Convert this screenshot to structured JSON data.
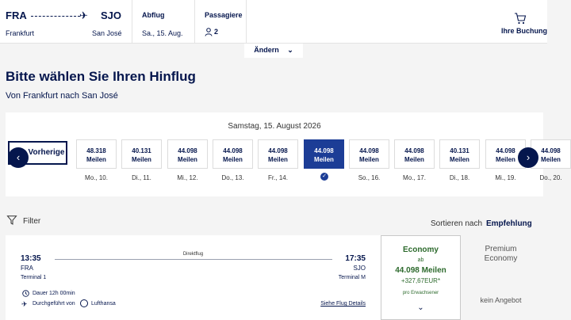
{
  "header": {
    "from_code": "FRA",
    "to_code": "SJO",
    "from_city": "Frankfurt",
    "to_city": "San José",
    "departure_label": "Abflug",
    "departure_value": "Sa., 15. Aug.",
    "passengers_label": "Passagiere",
    "passengers_value": "2",
    "booking_label": "Ihre Buchung",
    "change_label": "Ändern"
  },
  "page": {
    "title": "Bitte wählen Sie Ihren Hinflug",
    "subtitle": "Von Frankfurt nach San José"
  },
  "date_selector": {
    "heading": "Samstag, 15. August 2026",
    "prev_label": "Vorherige",
    "selected_index": 5,
    "days": [
      {
        "price": "48.318",
        "unit": "Meilen",
        "label": "Mo., 10."
      },
      {
        "price": "40.131",
        "unit": "Meilen",
        "label": "Di., 11."
      },
      {
        "price": "44.098",
        "unit": "Meilen",
        "label": "Mi., 12."
      },
      {
        "price": "44.098",
        "unit": "Meilen",
        "label": "Do., 13."
      },
      {
        "price": "44.098",
        "unit": "Meilen",
        "label": "Fr., 14."
      },
      {
        "price": "44.098",
        "unit": "Meilen",
        "label": ""
      },
      {
        "price": "44.098",
        "unit": "Meilen",
        "label": "So., 16."
      },
      {
        "price": "44.098",
        "unit": "Meilen",
        "label": "Mo., 17."
      },
      {
        "price": "40.131",
        "unit": "Meilen",
        "label": "Di., 18."
      },
      {
        "price": "44.098",
        "unit": "Meilen",
        "label": "Mi., 19."
      },
      {
        "price": "44.098",
        "unit": "Meilen",
        "label": "Do., 20."
      }
    ]
  },
  "filter": {
    "label": "Filter",
    "sort_label": "Sortieren nach",
    "sort_value": "Empfehlung"
  },
  "flight": {
    "dep_time": "13:35",
    "arr_time": "17:35",
    "type": "Direktflug",
    "dep_code": "FRA",
    "arr_code": "SJO",
    "dep_terminal": "Terminal 1",
    "arr_terminal": "Terminal M",
    "duration": "Dauer 12h 00min",
    "operated_by": "Durchgeführt von",
    "airline": "Lufthansa",
    "details_link": "Siehe Flug Details"
  },
  "fares": {
    "economy": {
      "title": "Economy",
      "from": "ab",
      "miles": "44.098 Meilen",
      "eur": "+327,67EUR*",
      "per": "pro Erwachsener"
    },
    "premium": {
      "title_line1": "Premium",
      "title_line2": "Economy",
      "none": "kein Angebot"
    }
  }
}
